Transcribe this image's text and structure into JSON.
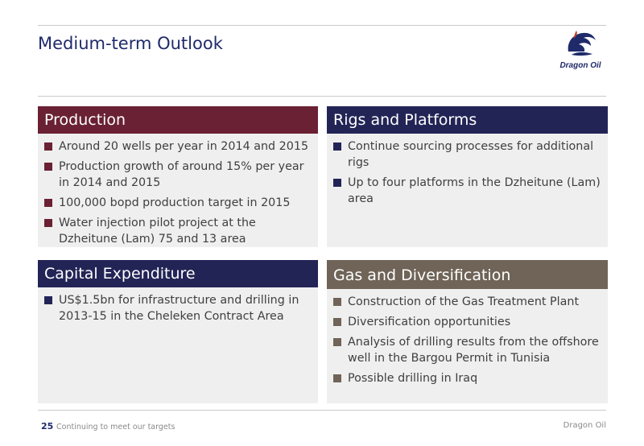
{
  "header": {
    "title": "Medium-term Outlook",
    "logo_text": "Dragon Oil"
  },
  "colors": {
    "navy": "#232456",
    "maroon": "#6a2133",
    "taupe": "#6f6457",
    "panel_bg": "#efefef"
  },
  "panels": {
    "production": {
      "heading": "Production",
      "items": [
        "Around 20 wells per year in 2014 and 2015",
        "Production growth of around 15% per year in 2014 and 2015",
        "100,000 bopd production target in 2015",
        "Water injection pilot project at the Dzheitune (Lam) 75 and 13 area"
      ]
    },
    "rigs": {
      "heading": "Rigs and Platforms",
      "items": [
        "Continue sourcing processes for additional rigs",
        "Up to four platforms in the Dzheitune (Lam) area"
      ]
    },
    "capex": {
      "heading": "Capital Expenditure",
      "items": [
        "US$1.5bn for infrastructure and drilling in 2013-15 in the Cheleken Contract Area"
      ]
    },
    "gas": {
      "heading": "Gas and Diversification",
      "items": [
        "Construction of the Gas Treatment Plant",
        "Diversification opportunities",
        "Analysis of drilling results from the offshore well in the Bargou Permit in Tunisia",
        "Possible drilling in Iraq"
      ]
    }
  },
  "footer": {
    "page_number": "25",
    "subtitle": "Continuing to meet our targets",
    "company": "Dragon Oil"
  }
}
